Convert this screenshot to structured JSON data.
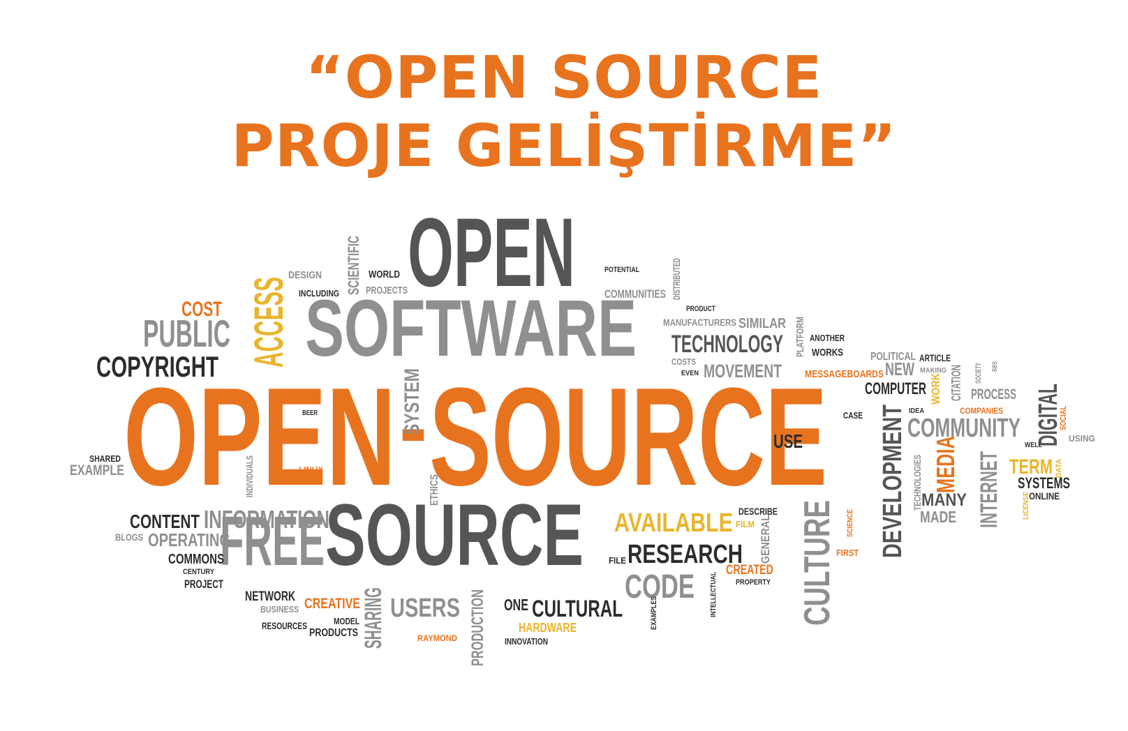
{
  "title": {
    "line1": "“OPEN SOURCE",
    "line2": "PROJE GELİŞTİRME”"
  },
  "colors": {
    "orange": "#e8731f",
    "yellow": "#e9b52e",
    "gray": "#8f8f8f",
    "lightgray": "#a4a4a4",
    "darkgray": "#555555",
    "dark": "#2c2c2c"
  },
  "words": [
    {
      "text": "OPEN",
      "color": "darkgray"
    },
    {
      "text": "SOFTWARE",
      "color": "gray"
    },
    {
      "text": "OPEN",
      "color": "orange"
    },
    {
      "text": "-",
      "color": "orange"
    },
    {
      "text": "SOURCE",
      "color": "orange"
    },
    {
      "text": "SOURCE",
      "color": "darkgray"
    },
    {
      "text": "FREE",
      "color": "gray"
    },
    {
      "text": "ACCESS",
      "color": "yellow"
    },
    {
      "text": "SYSTEM",
      "color": "gray"
    },
    {
      "text": "PUBLIC",
      "color": "gray"
    },
    {
      "text": "COPYRIGHT",
      "color": "dark"
    },
    {
      "text": "COST",
      "color": "orange"
    },
    {
      "text": "DESIGN",
      "color": "gray"
    },
    {
      "text": "INCLUDING",
      "color": "dark"
    },
    {
      "text": "SCIENTIFIC",
      "color": "gray"
    },
    {
      "text": "WORLD",
      "color": "dark"
    },
    {
      "text": "PROJECTS",
      "color": "gray"
    },
    {
      "text": "POTENTIAL",
      "color": "dark"
    },
    {
      "text": "COMMUNITIES",
      "color": "gray"
    },
    {
      "text": "DISTRIBUTED",
      "color": "gray"
    },
    {
      "text": "PRODUCT",
      "color": "dark"
    },
    {
      "text": "MANUFACTURERS",
      "color": "gray"
    },
    {
      "text": "SIMILAR",
      "color": "gray"
    },
    {
      "text": "TECHNOLOGY",
      "color": "darkgray"
    },
    {
      "text": "PLATFORM",
      "color": "gray"
    },
    {
      "text": "ANOTHER",
      "color": "dark"
    },
    {
      "text": "WORKS",
      "color": "dark"
    },
    {
      "text": "COSTS",
      "color": "gray"
    },
    {
      "text": "EVEN",
      "color": "dark"
    },
    {
      "text": "MOVEMENT",
      "color": "gray"
    },
    {
      "text": "MESSAGEBOARDS",
      "color": "orange"
    },
    {
      "text": "POLITICAL",
      "color": "gray"
    },
    {
      "text": "ARTICLE",
      "color": "dark"
    },
    {
      "text": "NEW",
      "color": "gray"
    },
    {
      "text": "MAKING",
      "color": "gray"
    },
    {
      "text": "COMPUTER",
      "color": "dark"
    },
    {
      "text": "WORK",
      "color": "yellow"
    },
    {
      "text": "CITATION",
      "color": "gray"
    },
    {
      "text": "SOCIETY",
      "color": "gray"
    },
    {
      "text": "BBS",
      "color": "gray"
    },
    {
      "text": "PROCESS",
      "color": "gray"
    },
    {
      "text": "DIGITAL",
      "color": "darkgray"
    },
    {
      "text": "IDEA",
      "color": "dark"
    },
    {
      "text": "COMPANIES",
      "color": "orange"
    },
    {
      "text": "SOCIAL",
      "color": "orange"
    },
    {
      "text": "CASE",
      "color": "dark"
    },
    {
      "text": "COMMUNITY",
      "color": "gray"
    },
    {
      "text": "USING",
      "color": "gray"
    },
    {
      "text": "USE",
      "color": "dark"
    },
    {
      "text": "DEVELOPMENT",
      "color": "darkgray"
    },
    {
      "text": "WELL",
      "color": "dark"
    },
    {
      "text": "TECHNOLOGIES",
      "color": "gray"
    },
    {
      "text": "MEDIA",
      "color": "orange"
    },
    {
      "text": "INTERNET",
      "color": "gray"
    },
    {
      "text": "TERM",
      "color": "yellow"
    },
    {
      "text": "DATA",
      "color": "yellow"
    },
    {
      "text": "SYSTEMS",
      "color": "dark"
    },
    {
      "text": "ONLINE",
      "color": "dark"
    },
    {
      "text": "LICENSE",
      "color": "yellow"
    },
    {
      "text": "MANY",
      "color": "darkgray"
    },
    {
      "text": "MADE",
      "color": "gray"
    },
    {
      "text": "BEER",
      "color": "dark"
    },
    {
      "text": "SHARED",
      "color": "dark"
    },
    {
      "text": "EXAMPLE",
      "color": "gray"
    },
    {
      "text": "LINUX",
      "color": "orange"
    },
    {
      "text": "INDIVIDUALS",
      "color": "gray"
    },
    {
      "text": "ETHICS",
      "color": "gray"
    },
    {
      "text": "CONTENT",
      "color": "dark"
    },
    {
      "text": "INFORMATION",
      "color": "gray"
    },
    {
      "text": "BLOGS",
      "color": "gray"
    },
    {
      "text": "OPERATING",
      "color": "gray"
    },
    {
      "text": "COMMONS",
      "color": "dark"
    },
    {
      "text": "CENTURY",
      "color": "dark"
    },
    {
      "text": "PROJECT",
      "color": "dark"
    },
    {
      "text": "AVAILABLE",
      "color": "yellow"
    },
    {
      "text": "DESCRIBE",
      "color": "dark"
    },
    {
      "text": "FILM",
      "color": "yellow"
    },
    {
      "text": "GENERAL",
      "color": "gray"
    },
    {
      "text": "CULTURE",
      "color": "gray"
    },
    {
      "text": "SCIENCE",
      "color": "orange"
    },
    {
      "text": "FIRST",
      "color": "orange"
    },
    {
      "text": "RESEARCH",
      "color": "dark"
    },
    {
      "text": "FILE",
      "color": "dark"
    },
    {
      "text": "CODE",
      "color": "gray"
    },
    {
      "text": "CREATED",
      "color": "orange"
    },
    {
      "text": "PROPERTY",
      "color": "dark"
    },
    {
      "text": "INTELLECTUAL",
      "color": "dark"
    },
    {
      "text": "EXAMPLES",
      "color": "dark"
    },
    {
      "text": "NETWORK",
      "color": "dark"
    },
    {
      "text": "BUSINESS",
      "color": "gray"
    },
    {
      "text": "CREATIVE",
      "color": "orange"
    },
    {
      "text": "SHARING",
      "color": "gray"
    },
    {
      "text": "USERS",
      "color": "gray"
    },
    {
      "text": "PRODUCTION",
      "color": "gray"
    },
    {
      "text": "ONE",
      "color": "dark"
    },
    {
      "text": "CULTURAL",
      "color": "dark"
    },
    {
      "text": "RESOURCES",
      "color": "dark"
    },
    {
      "text": "MODEL",
      "color": "dark"
    },
    {
      "text": "PRODUCTS",
      "color": "dark"
    },
    {
      "text": "RAYMOND",
      "color": "orange"
    },
    {
      "text": "HARDWARE",
      "color": "yellow"
    },
    {
      "text": "INNOVATION",
      "color": "dark"
    }
  ]
}
